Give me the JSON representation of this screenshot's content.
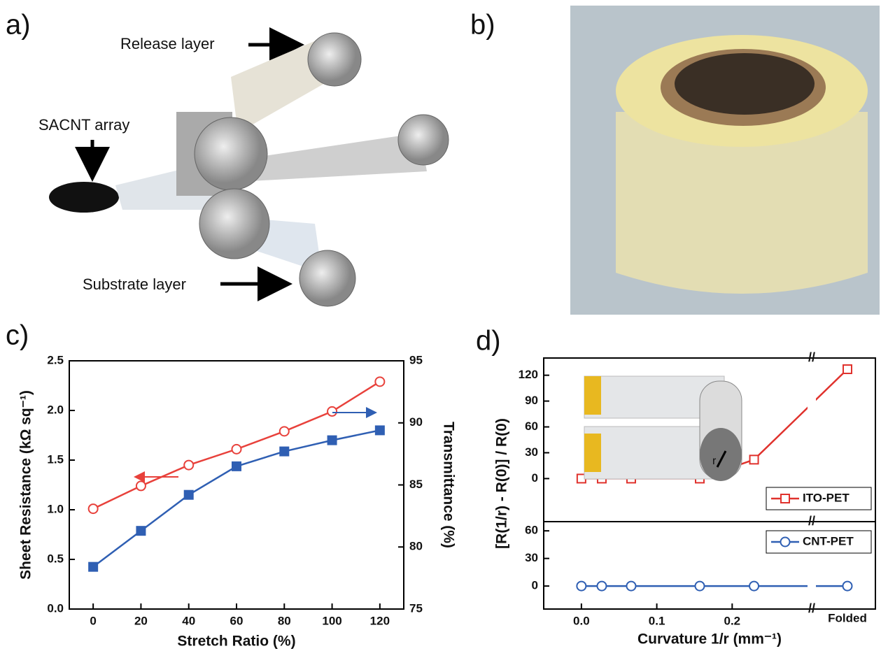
{
  "panels": {
    "a": {
      "label": "a)",
      "texts": [
        "Release layer",
        "SACNT array",
        "Substrate layer"
      ]
    },
    "b": {
      "label": "b)"
    }
  },
  "chart_data": [
    {
      "type": "dual-line",
      "label": "c)",
      "x": [
        0,
        20,
        40,
        60,
        80,
        100,
        120
      ],
      "xlim": [
        -10,
        130
      ],
      "xticks": [
        0,
        20,
        40,
        60,
        80,
        100,
        120
      ],
      "ylim": [
        0,
        2.5
      ],
      "yticks": [
        {
          "value": 0,
          "label": "0.0"
        },
        0.5,
        {
          "value": 1,
          "label": "1.0"
        },
        1.5,
        {
          "value": 2,
          "label": "2.0"
        },
        2.5
      ],
      "y2lim": [
        75,
        95
      ],
      "y2ticks": [
        75,
        80,
        85,
        90,
        95
      ],
      "xlabel": "Stretch Ratio (%)",
      "ylabel": "Sheet Resistance (kΩ sq⁻¹)",
      "y2label": "Transmittance (%)",
      "series": [
        {
          "color": "#e8413b",
          "marker": "open-circle",
          "values": [
            1.01,
            1.24,
            1.45,
            1.61,
            1.79,
            1.99,
            2.29
          ]
        },
        {
          "color": "#2f5fb3",
          "marker": "square",
          "axis": "y2",
          "values": [
            78.4,
            81.3,
            84.2,
            86.5,
            87.7,
            88.6,
            89.4
          ]
        }
      ]
    },
    {
      "type": "broken-line",
      "label": "d)",
      "x": [
        0,
        0.027,
        0.066,
        0.157,
        0.229,
        "Folded"
      ],
      "xlim": [
        -0.05,
        0.39
      ],
      "xticks": [
        {
          "value": 0,
          "label": "0.0"
        },
        0.1,
        0.2
      ],
      "xlabel": "Curvature 1/r (mm⁻¹)",
      "ylabel": "[R(1/r) - R(0)] / R(0)",
      "annotation": "r",
      "panels": [
        {
          "ylim": [
            -50,
            140
          ],
          "yticks": [
            0,
            30,
            60,
            90,
            120
          ],
          "series": [
            {
              "name": "ITO-PET",
              "color": "#e0322d",
              "marker": "open-square",
              "values": [
                0,
                0,
                0,
                0,
                22,
                127
              ]
            }
          ]
        },
        {
          "ylim": [
            -25,
            70
          ],
          "yticks": [
            0,
            30,
            60
          ],
          "series": [
            {
              "name": "CNT-PET",
              "color": "#2f5fb3",
              "marker": "open-circle",
              "values": [
                0,
                0,
                0,
                0,
                0,
                0
              ]
            }
          ]
        }
      ]
    }
  ]
}
